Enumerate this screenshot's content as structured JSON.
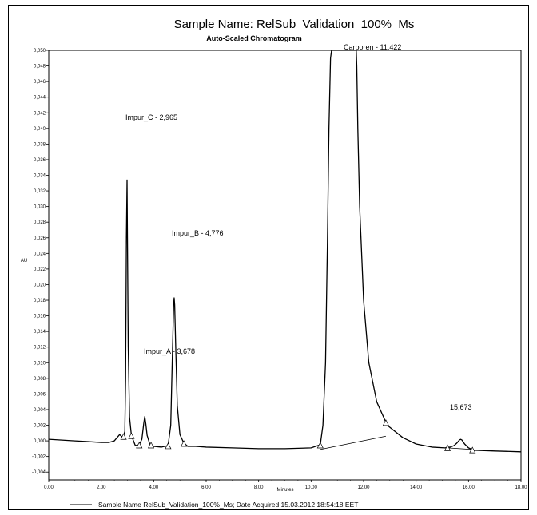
{
  "chart_data": {
    "type": "line",
    "title": "Sample Name: RelSub_Validation_100%_Ms",
    "subtitle": "Auto-Scaled Chromatogram",
    "xlabel": "Minutes",
    "ylabel": "AU",
    "xlim": [
      0,
      18
    ],
    "ylim": [
      -0.005,
      0.05
    ],
    "x_ticks": [
      "0,00",
      "2,00",
      "4,00",
      "6,00",
      "8,00",
      "10,00",
      "12,00",
      "14,00",
      "16,00",
      "18,00"
    ],
    "y_ticks": [
      "-0,004",
      "-0,002",
      "0,000",
      "0,002",
      "0,004",
      "0,006",
      "0,008",
      "0,010",
      "0,012",
      "0,014",
      "0,016",
      "0,018",
      "0,020",
      "0,022",
      "0,024",
      "0,026",
      "0,028",
      "0,030",
      "0,032",
      "0,034",
      "0,036",
      "0,038",
      "0,040",
      "0,042",
      "0,044",
      "0,046",
      "0,048",
      "0,050"
    ],
    "grid": false,
    "series": [
      {
        "name": "Sample Name RelSub_Validation_100%_Ms; Date Acquired 15.03.2012 18:54:18 EET",
        "color": "#000000",
        "x": [
          0.0,
          0.5,
          1.0,
          1.5,
          2.0,
          2.3,
          2.5,
          2.6,
          2.7,
          2.8,
          2.85,
          2.9,
          2.93,
          2.96,
          2.985,
          3.0,
          3.03,
          3.08,
          3.15,
          3.3,
          3.45,
          3.55,
          3.62,
          3.66,
          3.7,
          3.75,
          3.85,
          4.0,
          4.3,
          4.55,
          4.65,
          4.72,
          4.76,
          4.78,
          4.8,
          4.84,
          4.9,
          5.0,
          5.15,
          5.3,
          5.6,
          6.0,
          7.0,
          8.0,
          9.0,
          10.0,
          10.35,
          10.45,
          10.55,
          10.62,
          10.68,
          10.74,
          10.78,
          11.0,
          11.5,
          11.7,
          11.72,
          11.74,
          11.78,
          11.85,
          12.0,
          12.2,
          12.5,
          12.9,
          13.5,
          14.0,
          14.6,
          15.1,
          15.3,
          15.45,
          15.55,
          15.65,
          15.7,
          15.75,
          15.85,
          16.0,
          16.2,
          17.0,
          18.0
        ],
        "y": [
          0.0002,
          0.0001,
          0.0,
          -0.0001,
          -0.0002,
          -0.0002,
          0.0,
          0.0004,
          0.0008,
          0.0005,
          0.0006,
          0.0012,
          0.008,
          0.026,
          0.0334,
          0.026,
          0.012,
          0.003,
          0.0007,
          -0.0006,
          -0.0005,
          0.0002,
          0.0022,
          0.0031,
          0.0022,
          0.0007,
          -0.0004,
          -0.0007,
          -0.0008,
          -0.0006,
          0.002,
          0.012,
          0.0174,
          0.0183,
          0.0174,
          0.012,
          0.0045,
          0.0008,
          -0.0003,
          -0.0007,
          -0.0007,
          -0.0008,
          -0.0009,
          -0.001,
          -0.001,
          -0.0009,
          -0.0005,
          0.002,
          0.01,
          0.025,
          0.04,
          0.049,
          0.05,
          0.05,
          0.05,
          0.05,
          0.05,
          0.048,
          0.04,
          0.03,
          0.018,
          0.01,
          0.005,
          0.002,
          0.0004,
          -0.0004,
          -0.0008,
          -0.0009,
          -0.0008,
          -0.0006,
          -0.0003,
          0.0001,
          0.0002,
          0.0001,
          -0.0004,
          -0.0009,
          -0.0012,
          -0.0013,
          -0.0014
        ]
      }
    ],
    "peak_labels": [
      {
        "text": "Impur_C - 2,965",
        "x": 2.965
      },
      {
        "text": "Impur_A - 3,678",
        "x": 3.678
      },
      {
        "text": "Impur_B - 4,776",
        "x": 4.776
      },
      {
        "text": "Carboren - 11,422",
        "x": 11.422
      },
      {
        "text": "15,673",
        "x": 15.673
      }
    ],
    "baseline_markers": [
      2.85,
      3.15,
      3.45,
      3.9,
      4.55,
      5.15,
      10.35,
      12.85,
      15.2,
      16.15
    ],
    "baselines": [
      [
        10.35,
        -0.0011,
        12.85,
        0.0006
      ],
      [
        15.2,
        -0.0009,
        16.15,
        -0.0011
      ]
    ]
  }
}
